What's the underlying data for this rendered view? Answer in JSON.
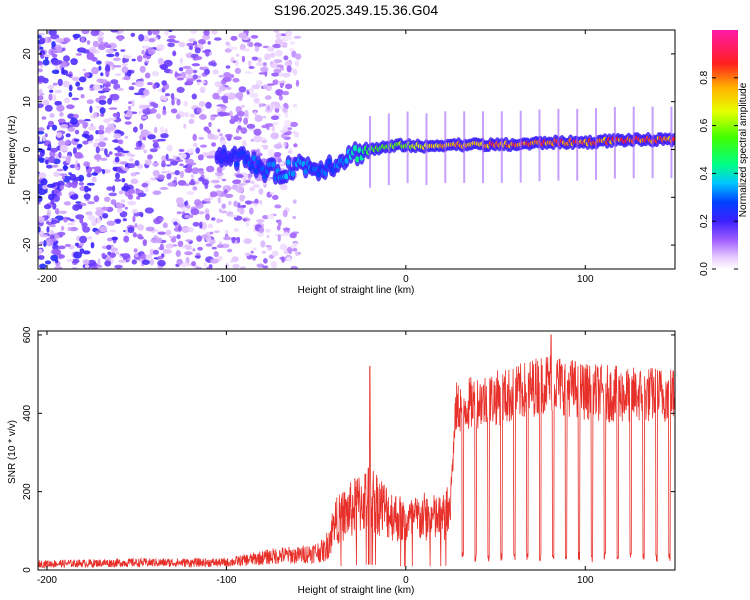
{
  "figure": {
    "title": "S196.2025.349.15.36.G04"
  },
  "chart_data": [
    {
      "type": "heatmap",
      "xlabel": "Height of straight line (km)",
      "ylabel": "Frequency (Hz)",
      "xlim": [
        -205,
        150
      ],
      "ylim": [
        -25,
        25
      ],
      "xticks": [
        -200,
        -100,
        0,
        100
      ],
      "xtick_labels": [
        "-200",
        "-100",
        "0",
        "100"
      ],
      "yticks": [
        -20,
        -10,
        0,
        10,
        20
      ],
      "ytick_labels": [
        "-20",
        "-10",
        "0",
        "10",
        "20"
      ],
      "colorbar": {
        "label": "Normalized spectral amplitude",
        "range": [
          0,
          1
        ],
        "ticks": [
          0,
          0.2,
          0.4,
          0.6,
          0.8
        ],
        "tick_labels": [
          "0.0",
          "0.2",
          "0.4",
          "0.6",
          "0.8"
        ]
      },
      "signal_trace": {
        "x": [
          -105,
          -90,
          -80,
          -70,
          -60,
          -50,
          -40,
          -30,
          -20,
          -10,
          0,
          10,
          20,
          40,
          60,
          80,
          100,
          120,
          150
        ],
        "frequency": [
          -1,
          -2,
          -4,
          -5,
          -3,
          -4,
          -3,
          -1,
          0,
          0.5,
          1,
          0.5,
          1,
          1,
          1,
          1.5,
          1.5,
          2,
          2
        ],
        "amplitude": [
          0.2,
          0.3,
          0.3,
          0.35,
          0.35,
          0.3,
          0.3,
          0.4,
          0.5,
          0.6,
          0.6,
          0.7,
          0.75,
          0.8,
          0.85,
          0.85,
          0.85,
          0.85,
          0.85
        ]
      },
      "noise_region_x": [
        -205,
        -60
      ]
    },
    {
      "type": "line",
      "xlabel": "Height of straight line (km)",
      "ylabel": "SNR (10 * v/v)",
      "xlim": [
        -205,
        150
      ],
      "ylim": [
        0,
        610
      ],
      "xticks": [
        -200,
        -100,
        0,
        100
      ],
      "xtick_labels": [
        "-200",
        "-100",
        "0",
        "100"
      ],
      "yticks": [
        0,
        200,
        400,
        600
      ],
      "ytick_labels": [
        "0",
        "200",
        "400",
        "600"
      ],
      "series": [
        {
          "name": "SNR",
          "color": "#e8302a",
          "envelope_x": [
            -205,
            -150,
            -100,
            -80,
            -70,
            -60,
            -45,
            -40,
            -30,
            -20,
            -10,
            0,
            10,
            20,
            25,
            28,
            40,
            60,
            80,
            100,
            120,
            150
          ],
          "envelope_y": [
            25,
            30,
            30,
            50,
            60,
            60,
            80,
            180,
            230,
            280,
            220,
            180,
            200,
            190,
            230,
            480,
            500,
            520,
            560,
            530,
            520,
            520
          ],
          "spikes": [
            {
              "x": -20,
              "y": 520
            },
            {
              "x": 81,
              "y": 600
            }
          ]
        }
      ]
    }
  ]
}
